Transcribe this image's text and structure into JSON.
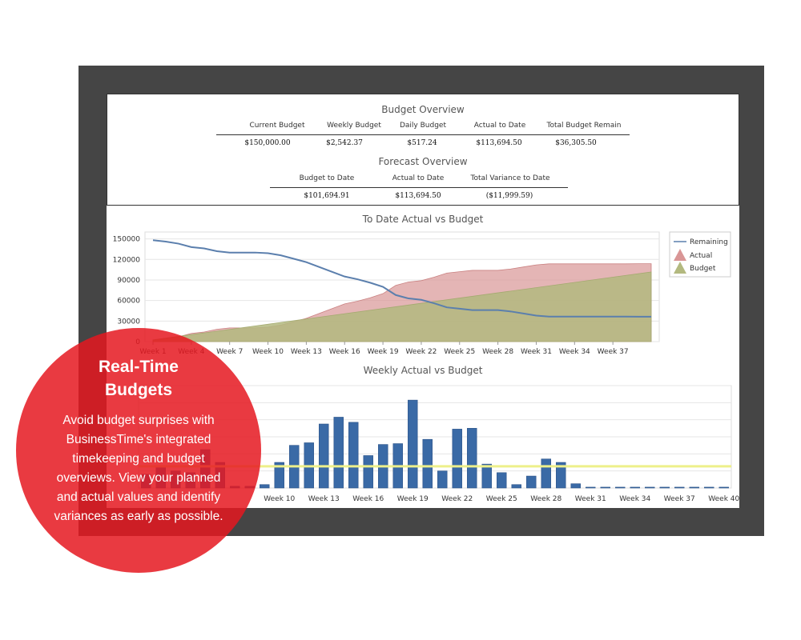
{
  "budget_overview": {
    "title": "Budget Overview",
    "headers": [
      "Current Budget",
      "Weekly Budget",
      "Daily Budget",
      "Actual to Date",
      "Total Budget Remain"
    ],
    "values": [
      "$150,000.00",
      "$2,542.37",
      "$517.24",
      "$113,694.50",
      "$36,305.50"
    ]
  },
  "forecast_overview": {
    "title": "Forecast Overview",
    "headers": [
      "Budget to Date",
      "Actual to Date",
      "Total Variance to Date"
    ],
    "values": [
      "$101,694.91",
      "$113,694.50",
      "($11,999.59)"
    ]
  },
  "badge": {
    "title_line1": "Real-Time",
    "title_line2": "Budgets",
    "text": "Avoid budget surprises with BusinessTime's integrated timekeeping and budget overviews. View your planned and actual values and identify variances as early as possible."
  },
  "colors": {
    "frame": "#454545",
    "remaining_line": "#5b7fad",
    "actual_area": "#d99696",
    "budget_area": "#b3b97f",
    "bars": "#3a6aa6",
    "weekly_budget_line": "#eef08a",
    "badge": "#e51820"
  },
  "chart_data": [
    {
      "type": "area",
      "title": "To Date Actual vs Budget",
      "x_tick_labels": [
        "Week 1",
        "Week 4",
        "Week 7",
        "Week 10",
        "Week 13",
        "Week 16",
        "Week 19",
        "Week 22",
        "Week 25",
        "Week 28",
        "Week 31",
        "Week 34",
        "Week 37"
      ],
      "y_tick_labels": [
        "0",
        "30000",
        "60000",
        "90000",
        "120000",
        "150000"
      ],
      "ylim": [
        0,
        160000
      ],
      "xlim": [
        1,
        40
      ],
      "grid": true,
      "legend_position": "right",
      "series": [
        {
          "name": "Remaining",
          "kind": "line",
          "x": [
            1,
            2,
            3,
            4,
            5,
            6,
            7,
            8,
            9,
            10,
            11,
            12,
            13,
            14,
            15,
            16,
            17,
            18,
            19,
            20,
            21,
            22,
            23,
            24,
            25,
            26,
            27,
            28,
            29,
            30,
            31,
            32,
            33,
            34,
            35,
            36,
            37,
            38,
            39,
            40
          ],
          "values": [
            148000,
            146000,
            143000,
            138000,
            136000,
            132000,
            130000,
            130000,
            130000,
            129000,
            126000,
            121000,
            116000,
            109000,
            102000,
            95000,
            91000,
            86000,
            80000,
            68000,
            63000,
            61000,
            56000,
            50000,
            48000,
            46000,
            46000,
            46000,
            44000,
            41000,
            38000,
            36500,
            36500,
            36500,
            36500,
            36500,
            36500,
            36500,
            36300,
            36300
          ]
        },
        {
          "name": "Actual",
          "kind": "area",
          "x": [
            1,
            2,
            3,
            4,
            5,
            6,
            7,
            8,
            9,
            10,
            11,
            12,
            13,
            14,
            15,
            16,
            17,
            18,
            19,
            20,
            21,
            22,
            23,
            24,
            25,
            26,
            27,
            28,
            29,
            30,
            31,
            32,
            33,
            34,
            35,
            36,
            37,
            38,
            39,
            40
          ],
          "values": [
            2000,
            4000,
            7000,
            12000,
            14000,
            18000,
            20000,
            20000,
            20000,
            21000,
            24000,
            29000,
            34000,
            41000,
            48000,
            55000,
            59000,
            64000,
            70000,
            82000,
            87000,
            89000,
            94000,
            100000,
            102000,
            104000,
            104000,
            104000,
            106000,
            109000,
            112000,
            113500,
            113500,
            113500,
            113500,
            113500,
            113500,
            113500,
            113700,
            113700
          ]
        },
        {
          "name": "Budget",
          "kind": "area",
          "x": [
            1,
            40
          ],
          "values": [
            2542,
            101695
          ]
        }
      ]
    },
    {
      "type": "bar",
      "title": "Weekly Actual vs Budget",
      "x_tick_labels": [
        "Week 10",
        "Week 13",
        "Week 16",
        "Week 19",
        "Week 22",
        "Week 25",
        "Week 28",
        "Week 31",
        "Week 34",
        "Week 37",
        "Week 40"
      ],
      "ylim": [
        0,
        12000
      ],
      "grid": true,
      "categories": [
        "Week 1",
        "Week 2",
        "Week 3",
        "Week 4",
        "Week 5",
        "Week 6",
        "Week 7",
        "Week 8",
        "Week 9",
        "Week 10",
        "Week 11",
        "Week 12",
        "Week 13",
        "Week 14",
        "Week 15",
        "Week 16",
        "Week 17",
        "Week 18",
        "Week 19",
        "Week 20",
        "Week 21",
        "Week 22",
        "Week 23",
        "Week 24",
        "Week 25",
        "Week 26",
        "Week 27",
        "Week 28",
        "Week 29",
        "Week 30",
        "Week 31",
        "Week 32",
        "Week 33",
        "Week 34",
        "Week 35",
        "Week 36",
        "Week 37",
        "Week 38",
        "Week 39",
        "Week 40"
      ],
      "values": [
        1600,
        2500,
        2000,
        1800,
        4500,
        3000,
        200,
        200,
        400,
        3000,
        5000,
        5300,
        7500,
        8300,
        7700,
        3800,
        5100,
        5200,
        10300,
        5700,
        2000,
        6900,
        7000,
        2800,
        1800,
        400,
        1400,
        3400,
        3000,
        500,
        100,
        100,
        100,
        100,
        100,
        100,
        100,
        100,
        100,
        100
      ],
      "reference_line": {
        "value": 2542
      }
    }
  ]
}
